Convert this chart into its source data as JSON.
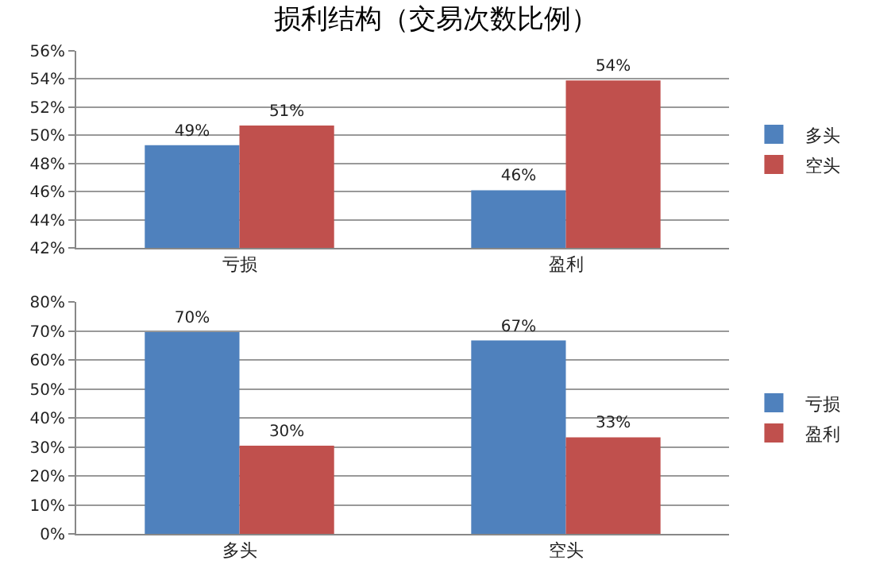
{
  "chart_data": [
    {
      "type": "bar",
      "title": "损利结构（交易次数比例）",
      "categories": [
        "亏损",
        "盈利"
      ],
      "series": [
        {
          "name": "多头",
          "color": "#4f81bd",
          "values": [
            49.3,
            46.1
          ],
          "value_labels": [
            "49%",
            "46%"
          ]
        },
        {
          "name": "空头",
          "color": "#c0504d",
          "values": [
            50.7,
            53.9
          ],
          "value_labels": [
            "51%",
            "54%"
          ]
        }
      ],
      "ylim": [
        42,
        56
      ],
      "yticks": [
        {
          "value": 42,
          "label": "42%"
        },
        {
          "value": 44,
          "label": "44%"
        },
        {
          "value": 46,
          "label": "46%"
        },
        {
          "value": 48,
          "label": "48%"
        },
        {
          "value": 50,
          "label": "50%"
        },
        {
          "value": 52,
          "label": "52%"
        },
        {
          "value": 54,
          "label": "54%"
        },
        {
          "value": 56,
          "label": "56%"
        }
      ],
      "grid": "y",
      "legend": "right"
    },
    {
      "type": "bar",
      "categories": [
        "多头",
        "空头"
      ],
      "series": [
        {
          "name": "亏损",
          "color": "#4f81bd",
          "values": [
            69.6,
            66.7
          ],
          "value_labels": [
            "70%",
            "67%"
          ]
        },
        {
          "name": "盈利",
          "color": "#c0504d",
          "values": [
            30.4,
            33.3
          ],
          "value_labels": [
            "30%",
            "33%"
          ]
        }
      ],
      "ylim": [
        0,
        80
      ],
      "yticks": [
        {
          "value": 0,
          "label": "0%"
        },
        {
          "value": 10,
          "label": "10%"
        },
        {
          "value": 20,
          "label": "20%"
        },
        {
          "value": 30,
          "label": "30%"
        },
        {
          "value": 40,
          "label": "40%"
        },
        {
          "value": 50,
          "label": "50%"
        },
        {
          "value": 60,
          "label": "60%"
        },
        {
          "value": 70,
          "label": "70%"
        },
        {
          "value": 80,
          "label": "80%"
        }
      ],
      "grid": "y",
      "legend": "right"
    }
  ]
}
